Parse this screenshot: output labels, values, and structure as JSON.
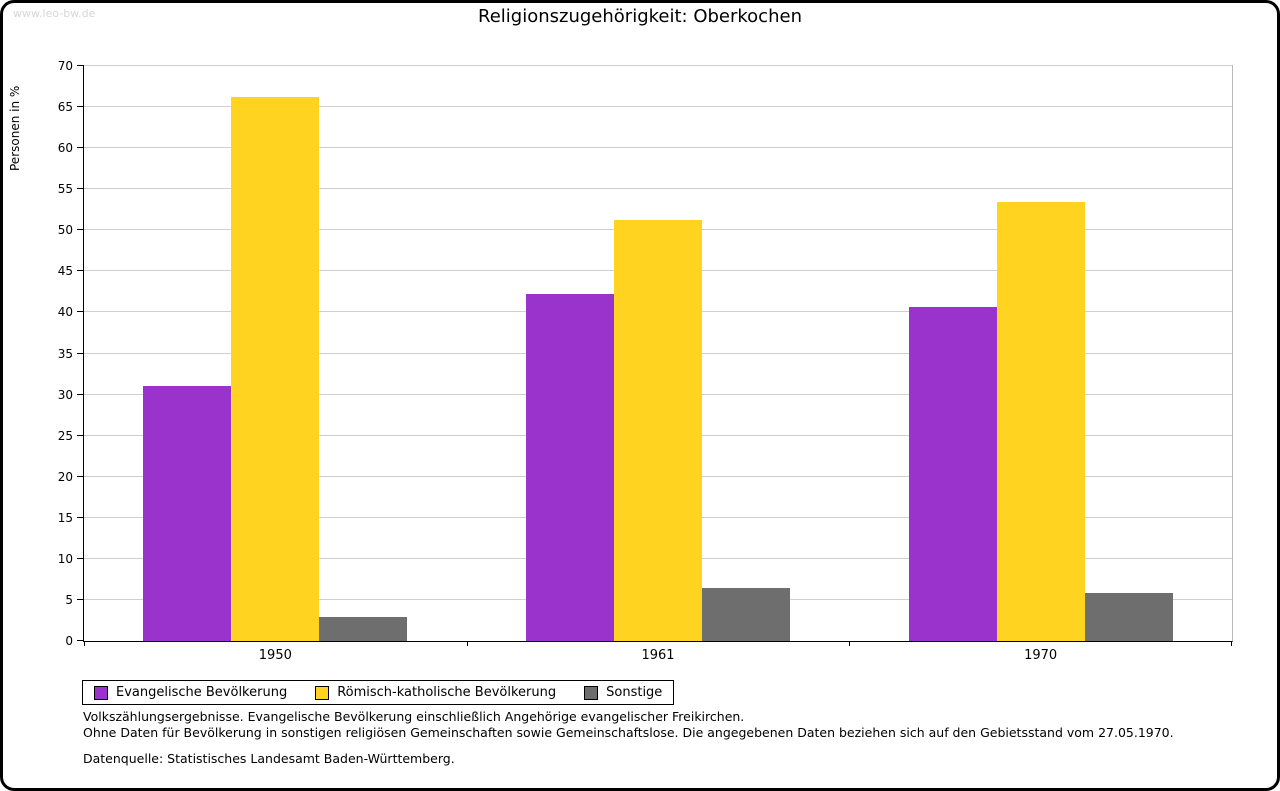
{
  "page": {
    "watermark": "www.leo-bw.de"
  },
  "chart_data": {
    "type": "bar",
    "title": "Religionszugehörigkeit: Oberkochen",
    "xlabel": "",
    "ylabel": "Personen in %",
    "ylim": [
      0,
      70
    ],
    "ytick_step": 5,
    "grid": true,
    "legend_position": "bottom",
    "categories": [
      "1950",
      "1961",
      "1970"
    ],
    "series": [
      {
        "name": "Evangelische Bevölkerung",
        "color": "#9933cc",
        "values": [
          31.1,
          42.3,
          40.7
        ]
      },
      {
        "name": "Römisch-katholische Bevölkerung",
        "color": "#ffd320",
        "values": [
          66.2,
          51.2,
          53.5
        ]
      },
      {
        "name": "Sonstige",
        "color": "#6e6e6e",
        "values": [
          2.9,
          6.5,
          5.9
        ]
      }
    ]
  },
  "footnotes": {
    "line1": "Volkszählungsergebnisse. Evangelische Bevölkerung einschließlich Angehörige evangelischer Freikirchen.",
    "line2": "Ohne Daten für Bevölkerung in sonstigen religiösen Gemeinschaften sowie Gemeinschaftslose. Die angegebenen Daten beziehen sich auf den Gebietsstand vom 27.05.1970.",
    "source": "Datenquelle: Statistisches Landesamt Baden-Württemberg."
  }
}
